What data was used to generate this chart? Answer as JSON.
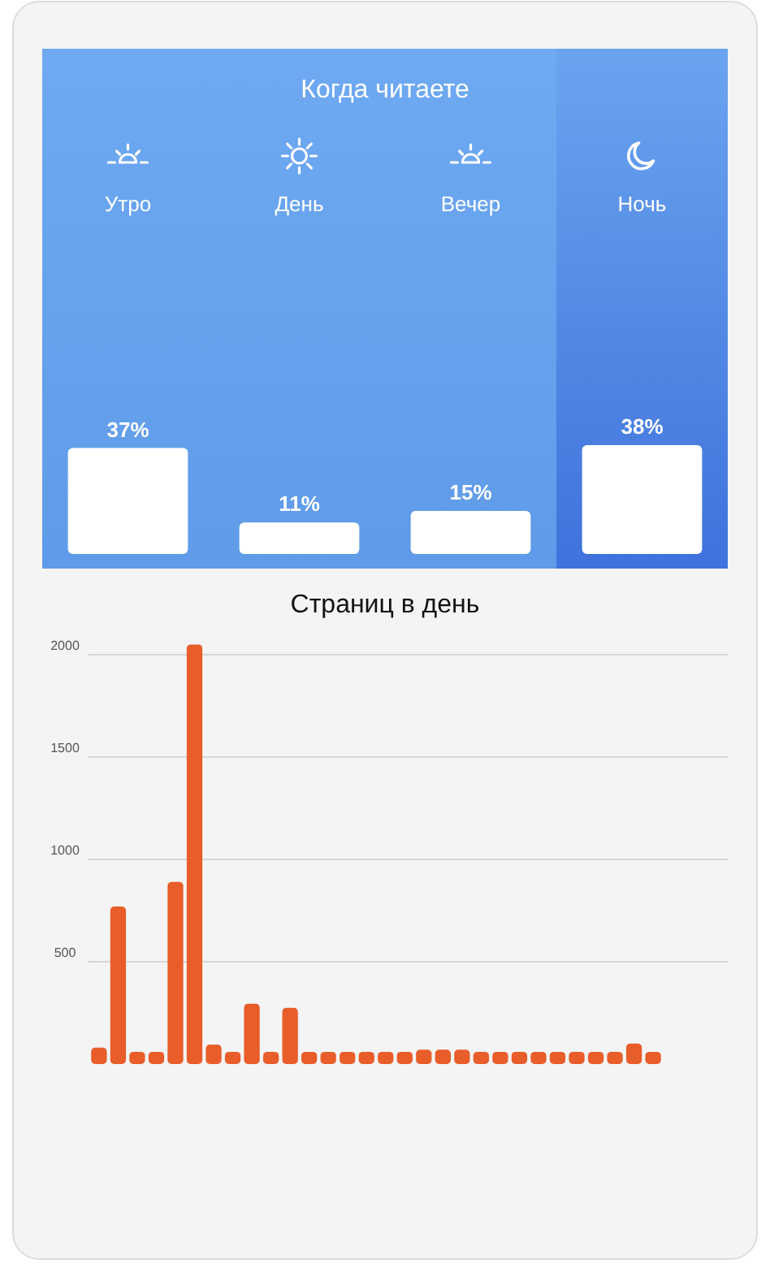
{
  "chart_data": [
    {
      "type": "bar",
      "title": "Когда читаете",
      "categories": [
        "Утро",
        "День",
        "Вечер",
        "Ночь"
      ],
      "values": [
        37,
        11,
        15,
        38
      ],
      "value_labels": [
        "37%",
        "11%",
        "15%",
        "38%"
      ],
      "color": "#ffffff",
      "bands": [
        {
          "axis": "x",
          "from": "Ночь",
          "to": "Ночь",
          "color": "#3f72dc"
        }
      ]
    },
    {
      "type": "bar",
      "title": "Страниц в день",
      "categories": [
        null,
        null,
        null,
        null,
        null,
        null,
        null,
        null,
        null,
        null,
        null,
        null,
        null,
        null,
        null,
        null,
        null,
        null,
        null,
        null,
        null,
        null,
        null,
        null,
        null,
        null,
        null,
        null,
        null,
        null
      ],
      "values": [
        80,
        770,
        60,
        60,
        890,
        2050,
        95,
        60,
        295,
        60,
        275,
        60,
        60,
        60,
        60,
        60,
        60,
        70,
        70,
        70,
        60,
        60,
        60,
        60,
        60,
        60,
        60,
        60,
        100,
        60
      ],
      "color": "#e85d2a",
      "ylim": [
        0,
        2050
      ],
      "yticks": [
        500,
        1000,
        1500,
        2000
      ],
      "grid": "y"
    }
  ]
}
